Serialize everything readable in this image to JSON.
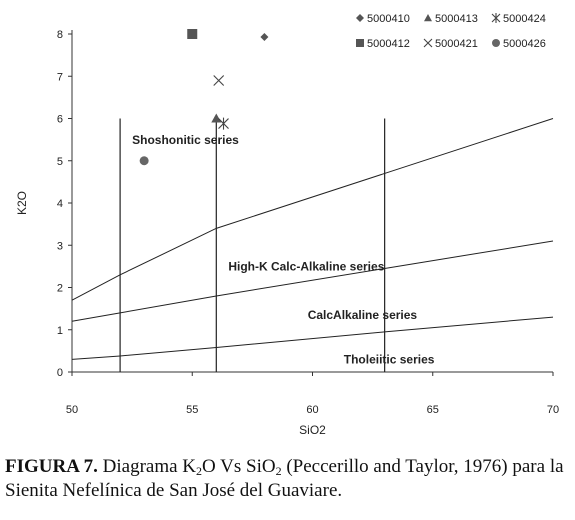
{
  "chart_data": {
    "type": "line",
    "xlabel": "SiO2",
    "ylabel": "K2O",
    "xlim": [
      50,
      70
    ],
    "ylim": [
      0,
      8
    ],
    "xticks": [
      50,
      55,
      60,
      65,
      70
    ],
    "yticks": [
      0,
      1,
      2,
      3,
      4,
      5,
      6,
      7,
      8
    ],
    "grid": false,
    "legend_position": "top-right",
    "boundary_lines": [
      {
        "x": [
          50,
          52,
          56,
          63,
          70
        ],
        "y": [
          1.7,
          2.3,
          3.4,
          4.7,
          6.0
        ]
      },
      {
        "x": [
          50,
          52,
          56,
          63,
          70
        ],
        "y": [
          1.2,
          1.4,
          1.8,
          2.45,
          3.1
        ]
      },
      {
        "x": [
          50,
          52,
          56,
          63,
          70
        ],
        "y": [
          0.3,
          0.38,
          0.58,
          0.95,
          1.3
        ]
      }
    ],
    "vertical_lines": [
      {
        "x": 52,
        "y": [
          0,
          6
        ]
      },
      {
        "x": 56,
        "y": [
          0,
          6
        ]
      },
      {
        "x": 63,
        "y": [
          0,
          6
        ]
      }
    ],
    "region_labels": [
      {
        "text": "Shoshonitic series",
        "x": 52.5,
        "y": 5.4
      },
      {
        "text": "High-K Calc-Alkaline series",
        "x": 56.5,
        "y": 2.4
      },
      {
        "text": "CalcAlkaline series",
        "x": 59.8,
        "y": 1.25
      },
      {
        "text": "Tholeiitic series",
        "x": 61.3,
        "y": 0.2
      }
    ],
    "series": [
      {
        "name": "5000410",
        "marker": "diamond",
        "x": [
          58.0
        ],
        "y": [
          7.93
        ]
      },
      {
        "name": "5000413",
        "marker": "triangle",
        "x": [
          56.0
        ],
        "y": [
          6.0
        ]
      },
      {
        "name": "5000424",
        "marker": "asterisk",
        "x": [
          56.3
        ],
        "y": [
          5.88
        ]
      },
      {
        "name": "5000412",
        "marker": "square",
        "x": [
          55.0
        ],
        "y": [
          8.0
        ]
      },
      {
        "name": "5000421",
        "marker": "x",
        "x": [
          56.1
        ],
        "y": [
          6.9
        ]
      },
      {
        "name": "5000426",
        "marker": "circle",
        "x": [
          53.0
        ],
        "y": [
          5.0
        ]
      }
    ]
  },
  "caption": {
    "label": "FIGURA 7.",
    "text_before_k": " Diagrama K",
    "k_sub": "2",
    "text_mid": "O Vs SiO",
    "si_sub": "2",
    "text_after": " (Peccerillo and Taylor, 1976) para la Sienita Nefelínica de San José del Guaviare."
  }
}
